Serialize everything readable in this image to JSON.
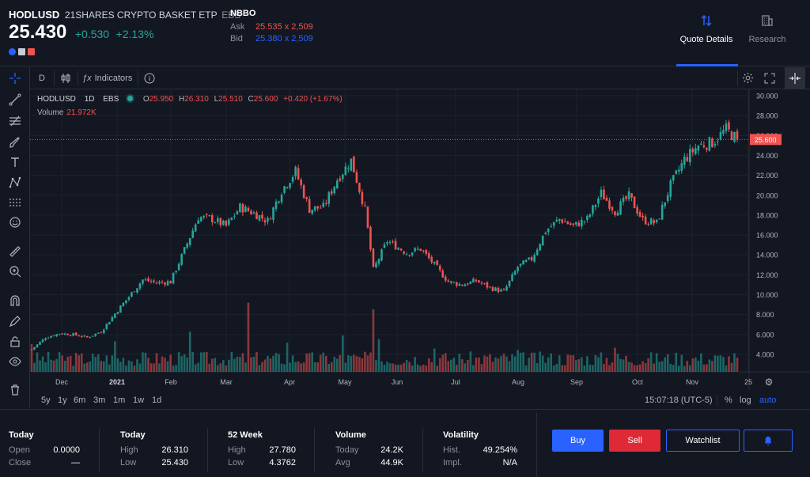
{
  "header": {
    "symbol": "HODLUSD",
    "description": "21SHARES CRYPTO BASKET ETP",
    "exchange": "EBS",
    "price": "25.430",
    "change": "+0.530",
    "change_pct": "+2.13%",
    "nbbo": {
      "title": "NBBO",
      "ask_label": "Ask",
      "ask_value": "25.535 x 2,509",
      "bid_label": "Bid",
      "bid_value": "25.380 x 2,509"
    },
    "tabs": [
      {
        "label": "Quote Details",
        "icon": "sort-arrows-icon",
        "active": true
      },
      {
        "label": "Research",
        "icon": "building-icon",
        "active": false
      }
    ]
  },
  "toolbar": {
    "interval": "D",
    "indicators_label": "Indicators"
  },
  "legend": {
    "symbol": "HODLUSD",
    "interval": "1D",
    "exchange": "EBS",
    "o_label": "O",
    "o_value": "25.950",
    "h_label": "H",
    "h_value": "26.310",
    "l_label": "L",
    "l_value": "25.510",
    "c_label": "C",
    "c_value": "25.600",
    "change": "+0.420 (+1.67%)",
    "volume_label": "Volume",
    "volume_value": "21.972K"
  },
  "chart_data": {
    "type": "candlestick",
    "y_ticks": [
      "30.000",
      "28.000",
      "26.000",
      "24.000",
      "22.000",
      "20.000",
      "18.000",
      "16.000",
      "14.000",
      "12.000",
      "10.000",
      "8.000",
      "6.000",
      "4.000"
    ],
    "y_range": [
      2.5,
      30.5
    ],
    "x_ticks": [
      "Dec",
      "2021",
      "Feb",
      "Mar",
      "Apr",
      "May",
      "Jun",
      "Jul",
      "Aug",
      "Sep",
      "Oct",
      "Nov",
      "25"
    ],
    "last_price_label": "25.600",
    "last_price": 25.6,
    "up_color": "#26a69a",
    "down_color": "#ef5350",
    "anchors": [
      [
        0,
        4.5
      ],
      [
        5,
        5.7
      ],
      [
        10,
        6.1
      ],
      [
        15,
        6.0
      ],
      [
        20,
        5.7
      ],
      [
        25,
        6.3
      ],
      [
        30,
        8.1
      ],
      [
        35,
        9.8
      ],
      [
        40,
        11.5
      ],
      [
        45,
        11.2
      ],
      [
        50,
        11.3
      ],
      [
        55,
        14.5
      ],
      [
        60,
        17.8
      ],
      [
        65,
        17.6
      ],
      [
        70,
        16.9
      ],
      [
        75,
        18.8
      ],
      [
        80,
        18.2
      ],
      [
        85,
        17.4
      ],
      [
        90,
        20.5
      ],
      [
        95,
        22.4
      ],
      [
        100,
        18.6
      ],
      [
        105,
        18.8
      ],
      [
        110,
        21.6
      ],
      [
        115,
        23.5
      ],
      [
        120,
        18.6
      ],
      [
        123,
        12.5
      ],
      [
        128,
        15.4
      ],
      [
        135,
        14.2
      ],
      [
        140,
        14.6
      ],
      [
        145,
        13.0
      ],
      [
        150,
        11.3
      ],
      [
        155,
        11.0
      ],
      [
        160,
        11.4
      ],
      [
        165,
        10.7
      ],
      [
        170,
        10.3
      ],
      [
        175,
        12.8
      ],
      [
        180,
        13.6
      ],
      [
        185,
        16.4
      ],
      [
        190,
        17.6
      ],
      [
        195,
        16.9
      ],
      [
        200,
        17.6
      ],
      [
        205,
        20.2
      ],
      [
        210,
        18.4
      ],
      [
        215,
        19.9
      ],
      [
        220,
        17.5
      ],
      [
        225,
        17.2
      ],
      [
        230,
        21.0
      ],
      [
        235,
        23.6
      ],
      [
        240,
        25.0
      ],
      [
        245,
        25.3
      ],
      [
        250,
        26.6
      ],
      [
        254,
        25.6
      ]
    ],
    "volume_spikes": [
      [
        0,
        0.38
      ],
      [
        30,
        0.42
      ],
      [
        57,
        0.55
      ],
      [
        78,
        0.95
      ],
      [
        92,
        0.4
      ],
      [
        112,
        0.5
      ],
      [
        123,
        0.86
      ],
      [
        125,
        0.45
      ],
      [
        145,
        0.32
      ],
      [
        175,
        0.3
      ],
      [
        210,
        0.33
      ]
    ]
  },
  "range_bar": {
    "ranges": [
      "5y",
      "1y",
      "6m",
      "3m",
      "1m",
      "1w",
      "1d"
    ],
    "time": "15:07:18 (UTC-5)",
    "pct_label": "%",
    "log_label": "log",
    "auto_label": "auto"
  },
  "stats": {
    "today1": {
      "title": "Today",
      "r1_label": "Open",
      "r1_value": "0.0000",
      "r2_label": "Close",
      "r2_value": "—"
    },
    "today2": {
      "title": "Today",
      "r1_label": "High",
      "r1_value": "26.310",
      "r2_label": "Low",
      "r2_value": "25.430"
    },
    "week52": {
      "title": "52 Week",
      "r1_label": "High",
      "r1_value": "27.780",
      "r2_label": "Low",
      "r2_value": "4.3762"
    },
    "volume": {
      "title": "Volume",
      "r1_label": "Today",
      "r1_value": "24.2K",
      "r2_label": "Avg",
      "r2_value": "44.9K"
    },
    "volatility": {
      "title": "Volatility",
      "r1_label": "Hist.",
      "r1_value": "49.254%",
      "r2_label": "Impl.",
      "r2_value": "N/A"
    }
  },
  "actions": {
    "buy": "Buy",
    "sell": "Sell",
    "watchlist": "Watchlist"
  }
}
